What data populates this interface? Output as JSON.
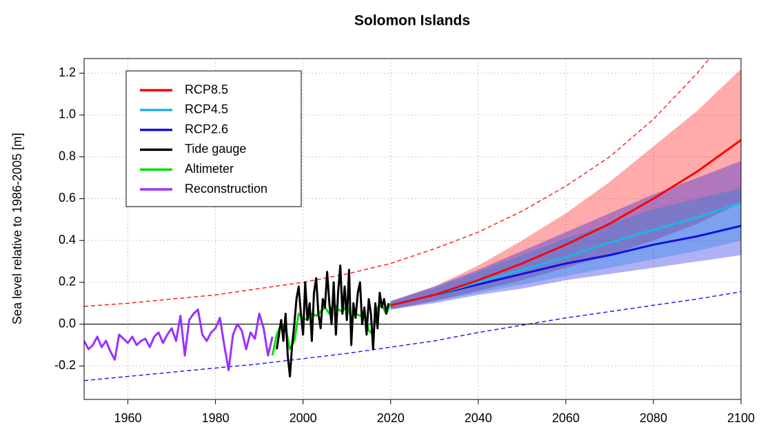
{
  "chart_data": {
    "type": "line",
    "title": "Solomon Islands",
    "y_label": "Sea level relative to 1986-2005 [m]",
    "xlim": [
      1950,
      2100
    ],
    "ylim": [
      -0.36,
      1.27
    ],
    "xticks": [
      1960,
      1980,
      2000,
      2020,
      2040,
      2060,
      2080,
      2100
    ],
    "yticks": [
      -0.2,
      {
        "value": 0,
        "label": "0.0"
      },
      0.2,
      0.4,
      0.6,
      0.8,
      {
        "value": 1,
        "label": "1.0"
      },
      1.2
    ],
    "grid": true,
    "legend": "top-left",
    "hline": {
      "value": 0,
      "color": "#000000"
    },
    "reference_lines": [
      {
        "color": "#ff2020",
        "style": "dashed",
        "x": [
          1950,
          1960,
          1970,
          1980,
          1990,
          2000,
          2010,
          2020,
          2030,
          2040,
          2050,
          2060,
          2070,
          2080,
          2090,
          2100
        ],
        "values": [
          0.085,
          0.1,
          0.12,
          0.14,
          0.17,
          0.2,
          0.24,
          0.29,
          0.36,
          0.44,
          0.54,
          0.66,
          0.8,
          0.98,
          1.2,
          1.45
        ]
      },
      {
        "color": "#2020f0",
        "style": "dashed",
        "x": [
          1950,
          1960,
          1970,
          1980,
          1990,
          2000,
          2010,
          2020,
          2030,
          2040,
          2050,
          2060,
          2070,
          2080,
          2090,
          2100
        ],
        "values": [
          -0.27,
          -0.25,
          -0.23,
          -0.21,
          -0.19,
          -0.165,
          -0.14,
          -0.11,
          -0.08,
          -0.04,
          -0.005,
          0.03,
          0.06,
          0.09,
          0.12,
          0.155
        ]
      }
    ],
    "series": [
      {
        "name": "RCP8.5",
        "color": "#ff0000",
        "x": [
          2020,
          2030,
          2040,
          2050,
          2060,
          2070,
          2080,
          2090,
          2100
        ],
        "values": [
          0.09,
          0.14,
          0.21,
          0.29,
          0.38,
          0.48,
          0.6,
          0.73,
          0.88
        ],
        "lower": [
          0.07,
          0.11,
          0.16,
          0.21,
          0.27,
          0.33,
          0.4,
          0.48,
          0.58
        ],
        "upper": [
          0.11,
          0.18,
          0.28,
          0.4,
          0.53,
          0.68,
          0.85,
          1.02,
          1.22
        ]
      },
      {
        "name": "RCP4.5",
        "color": "#1cb5e8",
        "x": [
          2020,
          2030,
          2040,
          2050,
          2060,
          2070,
          2080,
          2090,
          2100
        ],
        "values": [
          0.09,
          0.14,
          0.2,
          0.26,
          0.32,
          0.39,
          0.45,
          0.51,
          0.58
        ],
        "lower": [
          0.07,
          0.11,
          0.15,
          0.19,
          0.23,
          0.27,
          0.31,
          0.35,
          0.4
        ],
        "upper": [
          0.11,
          0.17,
          0.25,
          0.33,
          0.41,
          0.48,
          0.55,
          0.6,
          0.65
        ]
      },
      {
        "name": "RCP2.6",
        "color": "#1010e0",
        "x": [
          2020,
          2030,
          2040,
          2050,
          2060,
          2070,
          2080,
          2090,
          2100
        ],
        "values": [
          0.09,
          0.14,
          0.19,
          0.24,
          0.29,
          0.33,
          0.38,
          0.42,
          0.47
        ],
        "lower": [
          0.07,
          0.1,
          0.14,
          0.17,
          0.21,
          0.24,
          0.27,
          0.3,
          0.33
        ],
        "upper": [
          0.11,
          0.18,
          0.26,
          0.35,
          0.44,
          0.53,
          0.62,
          0.7,
          0.78
        ]
      },
      {
        "name": "Tide gauge",
        "color": "#000000",
        "x": [
          1994,
          1994.5,
          1995,
          1995.5,
          1996,
          1996.5,
          1997,
          1997.5,
          1998,
          1998.5,
          1999,
          1999.5,
          2000,
          2000.5,
          2001,
          2001.5,
          2002,
          2002.5,
          2003,
          2003.5,
          2004,
          2004.5,
          2005,
          2005.5,
          2006,
          2006.5,
          2007,
          2007.5,
          2008,
          2008.5,
          2009,
          2009.5,
          2010,
          2010.5,
          2011,
          2011.5,
          2012,
          2012.5,
          2013,
          2013.5,
          2014,
          2014.5,
          2015,
          2015.5,
          2016,
          2016.5,
          2017,
          2017.5,
          2018,
          2018.5,
          2019,
          2019.5
        ],
        "values": [
          -0.12,
          -0.05,
          0.02,
          -0.08,
          0.05,
          -0.15,
          -0.25,
          -0.1,
          0.0,
          0.12,
          0.18,
          0.05,
          -0.05,
          0.2,
          0.02,
          0.1,
          -0.08,
          0.15,
          0.22,
          0.05,
          -0.02,
          0.12,
          0.08,
          0.25,
          0.1,
          0.0,
          0.2,
          -0.05,
          0.15,
          0.28,
          0.05,
          0.18,
          0.02,
          0.26,
          -0.1,
          0.1,
          0.03,
          0.15,
          0.2,
          0.0,
          0.08,
          -0.05,
          0.12,
          0.05,
          -0.12,
          0.1,
          -0.02,
          0.15,
          0.08,
          0.12,
          0.05,
          0.1
        ]
      },
      {
        "name": "Altimeter",
        "color": "#00e000",
        "x": [
          1993,
          1994,
          1995,
          1996,
          1997,
          1998,
          1999,
          2000,
          2001,
          2002,
          2003,
          2004,
          2005,
          2006,
          2007,
          2008,
          2009,
          2010,
          2011,
          2012,
          2013,
          2014,
          2015,
          2016,
          2017,
          2018,
          2019,
          2020
        ],
        "values": [
          -0.15,
          -0.05,
          0.0,
          -0.02,
          -0.12,
          -0.08,
          0.05,
          0.03,
          0.02,
          0.05,
          0.04,
          0.06,
          0.08,
          0.05,
          0.1,
          0.07,
          0.06,
          0.09,
          0.03,
          0.05,
          0.04,
          0.06,
          -0.03,
          -0.05,
          0.08,
          0.09,
          0.05,
          0.1
        ]
      },
      {
        "name": "Reconstruction",
        "color": "#9b30ff",
        "x": [
          1950,
          1951,
          1952,
          1953,
          1954,
          1955,
          1956,
          1957,
          1958,
          1959,
          1960,
          1961,
          1962,
          1963,
          1964,
          1965,
          1966,
          1967,
          1968,
          1969,
          1970,
          1971,
          1972,
          1973,
          1974,
          1975,
          1976,
          1977,
          1978,
          1979,
          1980,
          1981,
          1982,
          1983,
          1984,
          1985,
          1986,
          1987,
          1988,
          1989,
          1990,
          1991,
          1992,
          1993
        ],
        "values": [
          -0.08,
          -0.12,
          -0.1,
          -0.06,
          -0.11,
          -0.08,
          -0.13,
          -0.17,
          -0.05,
          -0.07,
          -0.09,
          -0.06,
          -0.1,
          -0.08,
          -0.07,
          -0.11,
          -0.06,
          -0.04,
          -0.09,
          -0.05,
          -0.02,
          -0.08,
          0.04,
          -0.15,
          0.02,
          0.05,
          0.07,
          -0.05,
          -0.08,
          -0.04,
          -0.02,
          0.03,
          -0.1,
          -0.22,
          -0.05,
          0.0,
          -0.03,
          -0.12,
          -0.04,
          -0.07,
          0.05,
          -0.02,
          -0.15,
          -0.06
        ]
      }
    ]
  }
}
